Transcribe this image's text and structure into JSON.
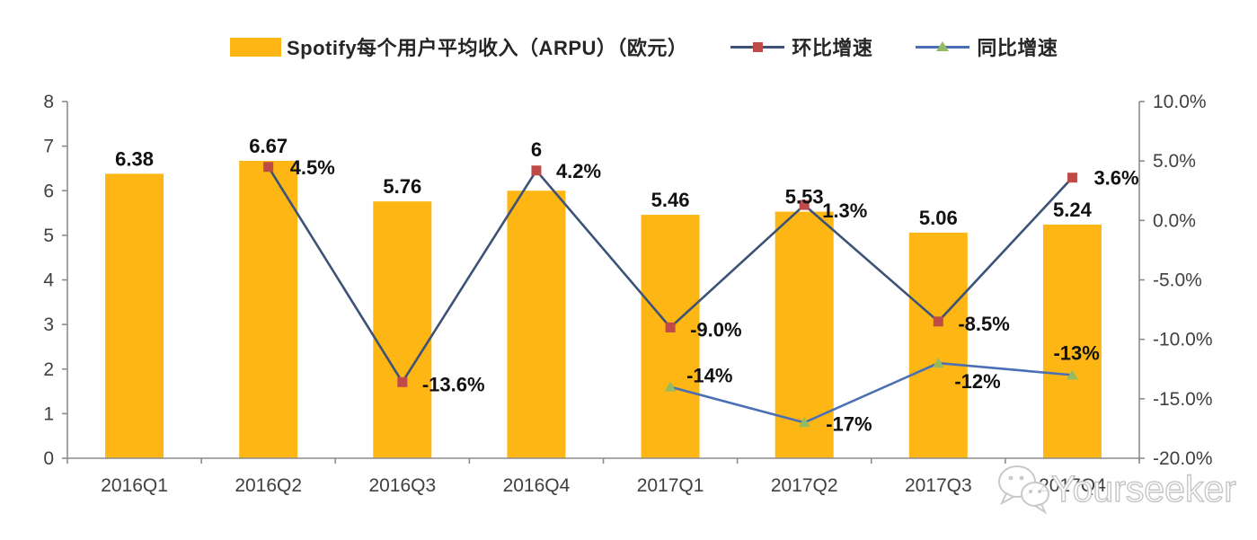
{
  "legend": {
    "bar_label": "Spotify每个用户平均收入（ARPU）（欧元）",
    "qoq_label": "环比增速",
    "yoy_label": "同比增速"
  },
  "watermark": {
    "text": "Yourseeker",
    "icon": "wechat-icon"
  },
  "colors": {
    "bar": "#FDB614",
    "qoq_line": "#3D5277",
    "qoq_marker": "#BE4B48",
    "yoy_line": "#4A6FB5",
    "yoy_marker": "#95BB60",
    "axis": "#8C8C8C",
    "data_label": "#111111",
    "tick_label": "#404040",
    "watermark": "#C9C9C9"
  },
  "chart_data": {
    "type": "bar",
    "subtype": "bar-line combo, dual axis",
    "categories": [
      "2016Q1",
      "2016Q2",
      "2016Q3",
      "2016Q4",
      "2017Q1",
      "2017Q2",
      "2017Q3",
      "2017Q4"
    ],
    "series": [
      {
        "name": "Spotify每个用户平均收入（ARPU）（欧元）",
        "render": "bar",
        "axis": "left",
        "values": [
          6.38,
          6.67,
          5.76,
          6,
          5.46,
          5.53,
          5.06,
          5.24
        ],
        "labels": [
          "6.38",
          "6.67",
          "5.76",
          "6",
          "5.46",
          "5.53",
          "5.06",
          "5.24"
        ]
      },
      {
        "name": "环比增速",
        "render": "line",
        "axis": "right",
        "values": [
          null,
          4.5,
          -13.6,
          4.2,
          -9.0,
          1.3,
          -8.5,
          3.6
        ],
        "labels": [
          null,
          "4.5%",
          "-13.6%",
          "4.2%",
          "-9.0%",
          "1.3%",
          "-8.5%",
          "3.6%"
        ]
      },
      {
        "name": "同比增速",
        "render": "line",
        "axis": "right",
        "values": [
          null,
          null,
          null,
          null,
          -14,
          -17,
          -12,
          -13
        ],
        "labels": [
          null,
          null,
          null,
          null,
          "-14%",
          "-17%",
          "-12%",
          "-13%"
        ]
      }
    ],
    "left_axis": {
      "min": 0,
      "max": 8,
      "step": 1,
      "tick_values": [
        0,
        1,
        2,
        3,
        4,
        5,
        6,
        7,
        8
      ],
      "tick_labels": [
        "0",
        "1",
        "2",
        "3",
        "4",
        "5",
        "6",
        "7",
        "8"
      ]
    },
    "right_axis": {
      "min": -20,
      "max": 10,
      "step": 5,
      "tick_values": [
        10,
        5,
        0,
        -5,
        -10,
        -15,
        -20
      ],
      "tick_labels": [
        "10.0%",
        "5.0%",
        "0.0%",
        "-5.0%",
        "-10.0%",
        "-15.0%",
        "-20.0%"
      ]
    },
    "title": "",
    "xlabel": "",
    "ylabel": "",
    "grid": false,
    "legend_position": "top"
  }
}
